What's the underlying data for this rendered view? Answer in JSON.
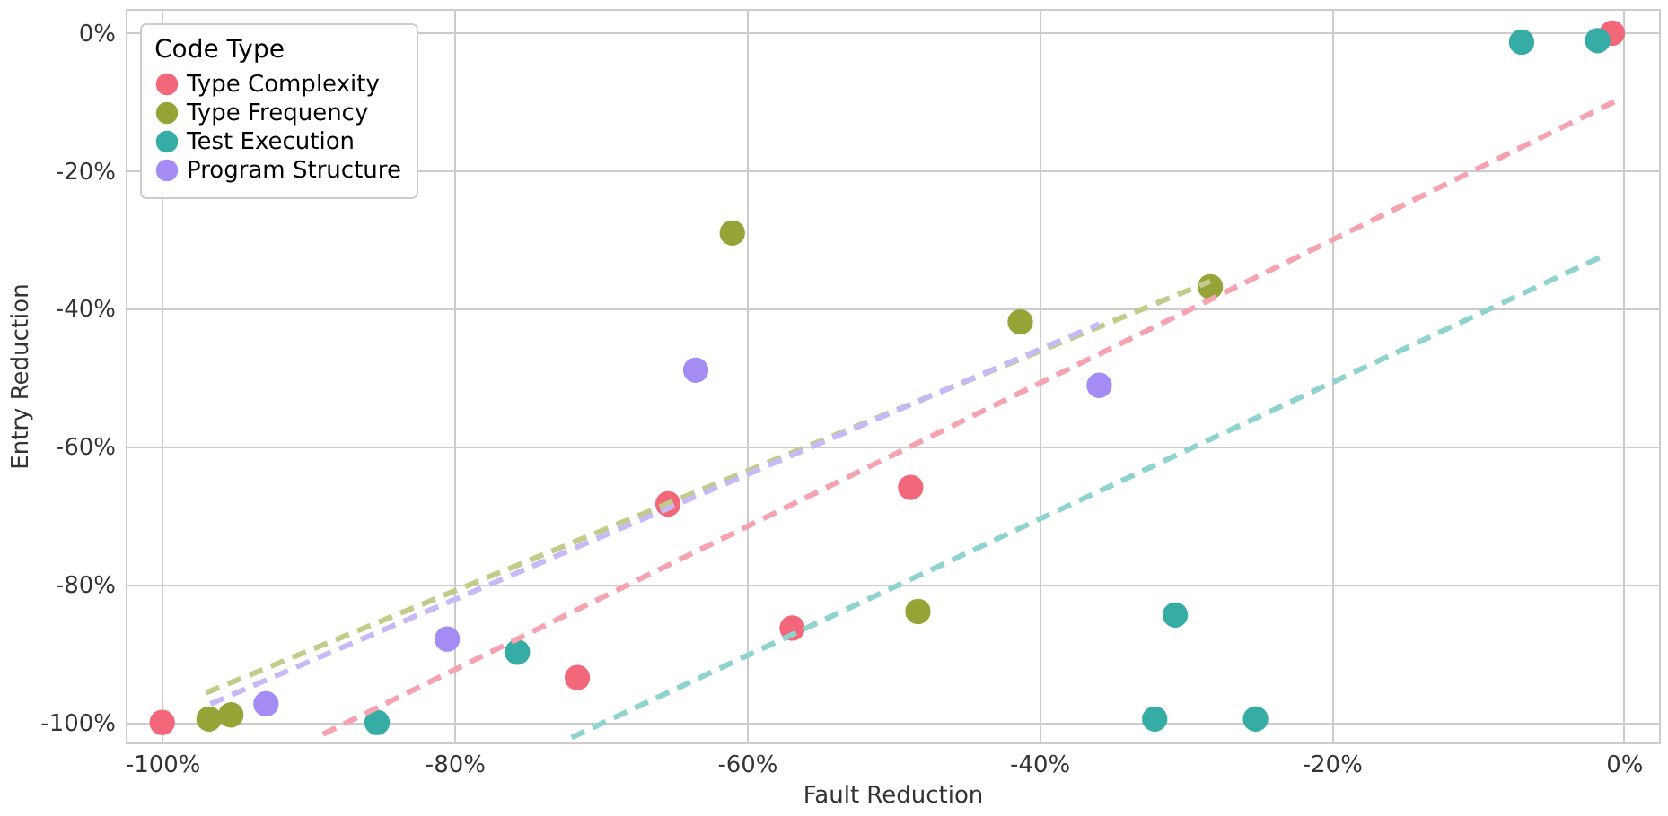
{
  "chart_data": {
    "type": "scatter",
    "xlabel": "Fault Reduction",
    "ylabel": "Entry Reduction",
    "legend_title": "Code Type",
    "legend": "top left",
    "grid": true,
    "marker": "circle",
    "xlim": [
      -102.5,
      2.4
    ],
    "ylim": [
      -102.9,
      3.5
    ],
    "xticks": [
      {
        "value": -100,
        "label": "-100%"
      },
      {
        "value": -80,
        "label": "-80%"
      },
      {
        "value": -60,
        "label": "-60%"
      },
      {
        "value": -40,
        "label": "-40%"
      },
      {
        "value": -20,
        "label": "-20%"
      },
      {
        "value": 0,
        "label": "0%"
      }
    ],
    "yticks": [
      {
        "value": -100,
        "label": "-100%"
      },
      {
        "value": -80,
        "label": "-80%"
      },
      {
        "value": -60,
        "label": "-60%"
      },
      {
        "value": -40,
        "label": "-40%"
      },
      {
        "value": -20,
        "label": "-20%"
      },
      {
        "value": 0,
        "label": "0%"
      }
    ],
    "series": [
      {
        "name": "Type Complexity",
        "color": "#f2677a",
        "x": [
          -100,
          -65.4,
          -71.6,
          -56.9,
          -48.8,
          -0.8
        ],
        "values": [
          -100,
          -68.3,
          -93.5,
          -86.3,
          -65.9,
          0
        ]
      },
      {
        "name": "Type Frequency",
        "color": "#96a336",
        "x": [
          -96.8,
          -95.3,
          -61.0,
          -41.3,
          -28.3,
          -48.3
        ],
        "values": [
          -99.5,
          -98.9,
          -29.0,
          -41.9,
          -36.8,
          -83.9
        ]
      },
      {
        "name": "Test Execution",
        "color": "#36ada4",
        "x": [
          -85.3,
          -75.7,
          -30.7,
          -32.1,
          -25.2,
          -7.0,
          -1.8
        ],
        "values": [
          -100,
          -89.8,
          -84.4,
          -99.5,
          -99.5,
          -1.3,
          -1.1
        ]
      },
      {
        "name": "Program Structure",
        "color": "#a48cf4",
        "x": [
          -92.9,
          -80.5,
          -63.5,
          -35.9
        ],
        "values": [
          -97.3,
          -87.9,
          -48.9,
          -51.1
        ]
      },
      {
        "type": "line",
        "marker": "none",
        "line_style": "dashed",
        "color": "#f5a3b0",
        "x": [
          -89,
          -0.6
        ],
        "values": [
          -101.7,
          -9.9
        ]
      },
      {
        "type": "line",
        "marker": "none",
        "line_style": "dashed",
        "color": "#c3cb8a",
        "x": [
          -97.0,
          -28.3
        ],
        "values": [
          -95.7,
          -36.0
        ]
      },
      {
        "type": "line",
        "marker": "none",
        "line_style": "dashed",
        "color": "#c8b8f6",
        "x": [
          -96.7,
          -35.9
        ],
        "values": [
          -97.3,
          -42.2
        ]
      },
      {
        "type": "line",
        "marker": "none",
        "line_style": "dashed",
        "color": "#8fd3ce",
        "x": [
          -72,
          -1.6
        ],
        "values": [
          -102.2,
          -32.5
        ]
      }
    ]
  }
}
